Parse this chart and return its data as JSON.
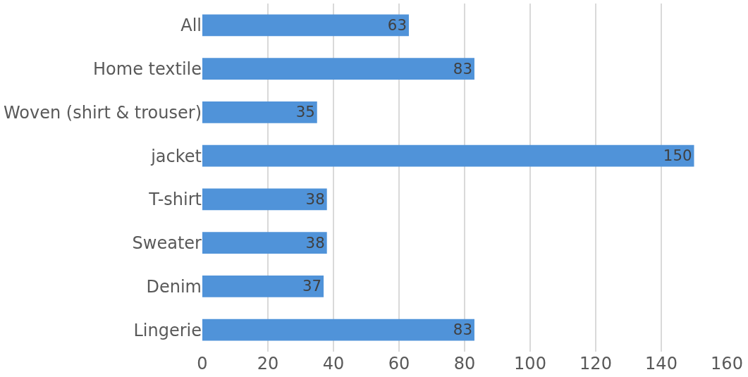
{
  "chart_data": {
    "type": "bar",
    "orientation": "horizontal",
    "categories": [
      "All",
      "Home textile",
      "Woven (shirt & trouser)",
      "jacket",
      "T-shirt",
      "Sweater",
      "Denim",
      "Lingerie"
    ],
    "values": [
      63,
      83,
      35,
      150,
      38,
      38,
      37,
      83
    ],
    "color": "#5093d9",
    "xlim": [
      0,
      160
    ],
    "xticks": [
      0,
      20,
      40,
      60,
      80,
      100,
      120,
      140,
      160
    ],
    "grid": "x",
    "data_labels": true
  }
}
